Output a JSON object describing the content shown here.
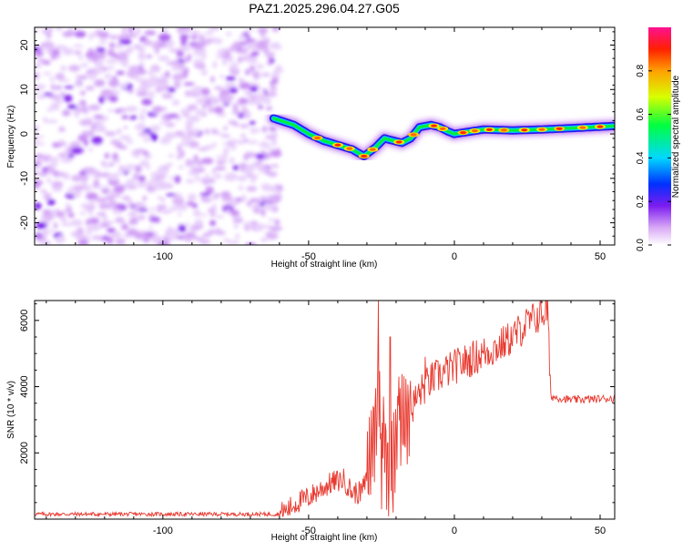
{
  "title": "PAZ1.2025.296.04.27.G05",
  "chart_data": [
    {
      "type": "heatmap",
      "name": "spectrogram",
      "xlabel": "Height of straight line (km)",
      "ylabel": "Frequency (Hz)",
      "xlim": [
        -144,
        55
      ],
      "ylim": [
        -25,
        24
      ],
      "xticks": [
        -100,
        -50,
        0,
        50
      ],
      "yticks": [
        -20,
        -10,
        0,
        10,
        20
      ],
      "noise_region_x": [
        -144,
        -60
      ],
      "colorbar": {
        "label": "Normalized spectral amplitude",
        "range": [
          0.0,
          1.0
        ],
        "ticks": [
          "0.0",
          "0.2",
          "0.4",
          "0.6",
          "0.8"
        ]
      },
      "ridge": {
        "x": [
          -62,
          -55,
          -50,
          -45,
          -40,
          -35,
          -31,
          -27,
          -24,
          -21,
          -18,
          -15,
          -12,
          -8,
          -5,
          -2,
          0,
          5,
          10,
          20,
          30,
          40,
          55
        ],
        "y": [
          3.5,
          2,
          0,
          -1.5,
          -2.5,
          -3.5,
          -5,
          -3,
          -1,
          -1.5,
          -2,
          -1,
          1.5,
          2,
          1.5,
          0.5,
          0,
          0.5,
          1,
          0.8,
          1,
          1.3,
          1.8
        ]
      }
    },
    {
      "type": "line",
      "name": "snr",
      "xlabel": "Height of straight line (km)",
      "ylabel": "SNR (10 * v/v)",
      "xlim": [
        -144,
        55
      ],
      "ylim": [
        0,
        6600
      ],
      "xticks": [
        -100,
        -50,
        0,
        50
      ],
      "yticks": [
        2000,
        4000,
        6000
      ],
      "color": "#e8392f",
      "trend": {
        "x": [
          -144,
          -60,
          -57,
          -54,
          -50,
          -46,
          -42,
          -38,
          -35,
          -32,
          -30,
          -28,
          -26,
          -24,
          -22,
          -20,
          -18,
          -15,
          -12,
          -8,
          -4,
          0,
          5,
          10,
          15,
          20,
          25,
          30,
          32,
          33,
          40,
          55
        ],
        "y": [
          150,
          150,
          300,
          500,
          650,
          900,
          1100,
          1200,
          800,
          800,
          1200,
          2500,
          3500,
          2600,
          800,
          2600,
          3000,
          3300,
          3800,
          4200,
          4400,
          4600,
          4800,
          5000,
          5200,
          5500,
          5900,
          6200,
          6300,
          3700,
          3600,
          3650
        ]
      },
      "spikes": [
        {
          "x": -26,
          "y": 6600
        },
        {
          "x": -25,
          "y": 300
        },
        {
          "x": -22,
          "y": 5500
        },
        {
          "x": -21,
          "y": 200
        },
        {
          "x": -19,
          "y": 4300
        },
        {
          "x": -10,
          "y": 4900
        },
        {
          "x": 32,
          "y": 6650
        }
      ]
    }
  ]
}
